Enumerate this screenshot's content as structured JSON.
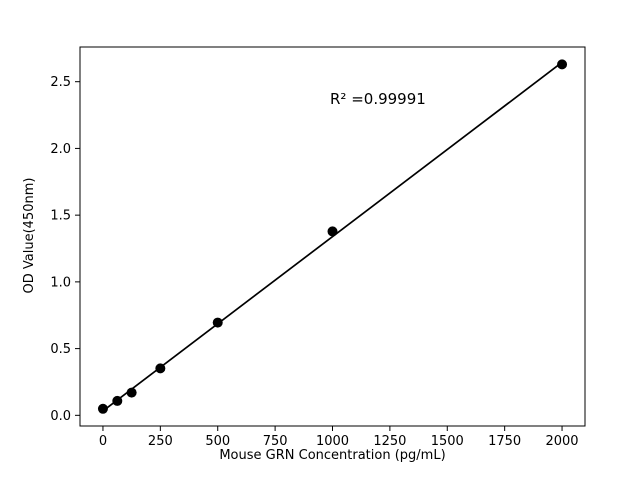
{
  "figure": {
    "background": "#ffffff"
  },
  "chart_data": {
    "type": "scatter",
    "title": "",
    "xlabel": "Mouse GRN Concentration (pg/mL)",
    "ylabel": "OD Value(450nm)",
    "points": [
      {
        "x": 0,
        "y": 0.049
      },
      {
        "x": 62.5,
        "y": 0.108
      },
      {
        "x": 125,
        "y": 0.17
      },
      {
        "x": 250,
        "y": 0.352
      },
      {
        "x": 500,
        "y": 0.695
      },
      {
        "x": 1000,
        "y": 1.378
      },
      {
        "x": 2000,
        "y": 2.63
      }
    ],
    "fit_line": {
      "x": [
        0,
        2000
      ],
      "y": [
        0.033,
        2.645
      ]
    },
    "annotation": {
      "text": "R² =0.99991",
      "x": 1000,
      "y": 2.38
    },
    "xlim": [
      -100,
      2100
    ],
    "ylim": [
      -0.08,
      2.76
    ],
    "xticks": [
      0,
      250,
      500,
      750,
      1000,
      1250,
      1500,
      1750,
      2000
    ],
    "yticks": [
      0.0,
      0.5,
      1.0,
      1.5,
      2.0,
      2.5
    ],
    "grid": false,
    "legend": null,
    "marker_color": "#000000",
    "line_color": "#000000"
  }
}
